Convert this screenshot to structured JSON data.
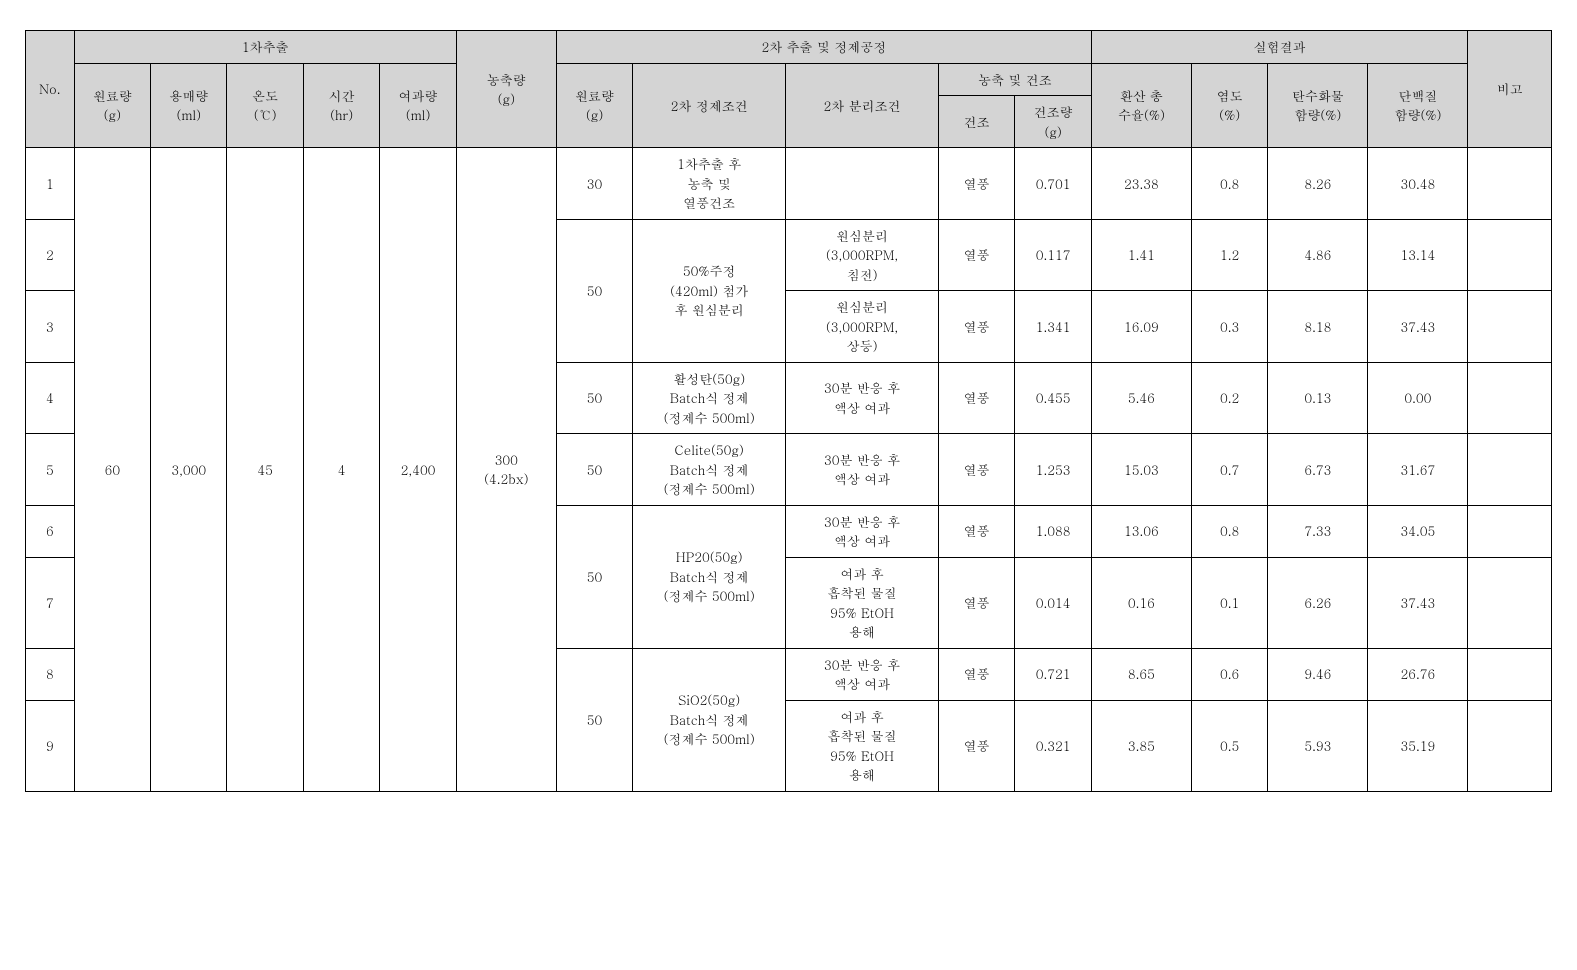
{
  "headers": {
    "no": "No.",
    "group1": "1차추출",
    "raw_g": "원료량\n(g)",
    "solvent_ml": "용매량\n(ml)",
    "temp_c": "온도\n(℃)",
    "time_hr": "시간\n(hr)",
    "filtrate_ml": "여과량\n(ml)",
    "conc_g": "농축량\n(g)",
    "group2": "2차 추출 및 정제공정",
    "raw2_g": "원료량\n(g)",
    "purify_cond": "2차 정제조건",
    "sep_cond": "2차 분리조건",
    "dry_group": "농축 및 건조",
    "dry_method": "건조",
    "dry_amount": "건조량\n(g)",
    "group3": "실험결과",
    "yield": "환산 총\n수율(%)",
    "salt": "염도\n(%)",
    "carb": "탄수화물\n함량(%)",
    "protein": "단백질\n함량(%)",
    "note": "비고"
  },
  "shared": {
    "raw_g": "60",
    "solvent_ml": "3,000",
    "temp_c": "45",
    "time_hr": "4",
    "filtrate_ml": "2,400",
    "conc_g": "300\n(4.2bx)"
  },
  "rows": [
    {
      "no": "1",
      "raw2": "30",
      "purify": "1차추출 후\n농축 및\n열풍건조",
      "sep": "",
      "dry": "열풍",
      "dry_amt": "0.701",
      "yield": "23.38",
      "salt": "0.8",
      "carb": "8.26",
      "protein": "30.48"
    },
    {
      "no": "2",
      "raw2": "",
      "purify": "",
      "sep": "원심분리\n(3,000RPM,\n침전)",
      "dry": "열풍",
      "dry_amt": "0.117",
      "yield": "1.41",
      "salt": "1.2",
      "carb": "4.86",
      "protein": "13.14"
    },
    {
      "no": "3",
      "raw2": "",
      "purify": "",
      "sep": "원심분리\n(3,000RPM,\n상등)",
      "dry": "열풍",
      "dry_amt": "1.341",
      "yield": "16.09",
      "salt": "0.3",
      "carb": "8.18",
      "protein": "37.43"
    },
    {
      "no": "4",
      "raw2": "50",
      "purify": "활성탄(50g)\nBatch식 정제\n(정제수 500ml)",
      "sep": "30분 반응 후\n액상 여과",
      "dry": "열풍",
      "dry_amt": "0.455",
      "yield": "5.46",
      "salt": "0.2",
      "carb": "0.13",
      "protein": "0.00"
    },
    {
      "no": "5",
      "raw2": "50",
      "purify": "Celite(50g)\nBatch식 정제\n(정제수 500ml)",
      "sep": "30분 반응 후\n액상 여과",
      "dry": "열풍",
      "dry_amt": "1.253",
      "yield": "15.03",
      "salt": "0.7",
      "carb": "6.73",
      "protein": "31.67"
    },
    {
      "no": "6",
      "raw2": "",
      "purify": "",
      "sep": "30분 반응 후\n액상 여과",
      "dry": "열풍",
      "dry_amt": "1.088",
      "yield": "13.06",
      "salt": "0.8",
      "carb": "7.33",
      "protein": "34.05"
    },
    {
      "no": "7",
      "raw2": "",
      "purify": "",
      "sep": "여과 후\n흡착된 물질\n95% EtOH\n용해",
      "dry": "열풍",
      "dry_amt": "0.014",
      "yield": "0.16",
      "salt": "0.1",
      "carb": "6.26",
      "protein": "37.43"
    },
    {
      "no": "8",
      "raw2": "",
      "purify": "",
      "sep": "30분 반응 후\n액상 여과",
      "dry": "열풍",
      "dry_amt": "0.721",
      "yield": "8.65",
      "salt": "0.6",
      "carb": "9.46",
      "protein": "26.76"
    },
    {
      "no": "9",
      "raw2": "",
      "purify": "",
      "sep": "여과 후\n흡착된 물질\n95% EtOH\n용해",
      "dry": "열풍",
      "dry_amt": "0.321",
      "yield": "3.85",
      "salt": "0.5",
      "carb": "5.93",
      "protein": "35.19"
    }
  ],
  "merged_purify": {
    "row2_3": {
      "raw2": "50",
      "text": "50%주정\n(420ml) 첨가\n후 원심분리"
    },
    "row6_7": {
      "raw2": "50",
      "text": "HP20(50g)\nBatch식 정제\n(정제수 500ml)"
    },
    "row8_9": {
      "raw2": "50",
      "text": "SiO2(50g)\nBatch식 정제\n(정제수 500ml)"
    }
  },
  "colors": {
    "header_bg": "#d4d4d4",
    "border": "#000000",
    "bg": "#ffffff"
  }
}
